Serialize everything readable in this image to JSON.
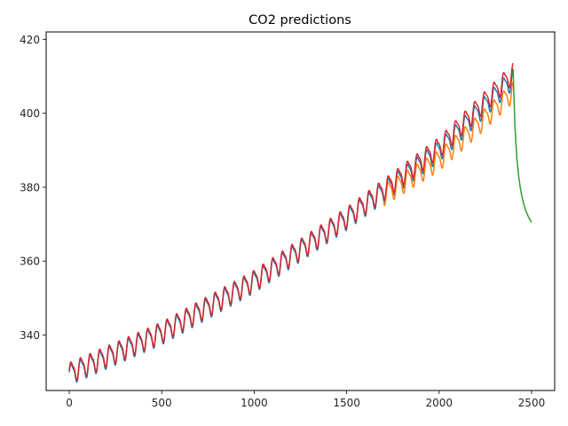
{
  "chart_data": {
    "type": "line",
    "title": "CO2 predictions",
    "xlabel": "",
    "ylabel": "",
    "xlim": [
      -125,
      2625
    ],
    "ylim": [
      325,
      422
    ],
    "grid": false,
    "legend": "none",
    "x_ticks": [
      0,
      500,
      1000,
      1500,
      2000,
      2500
    ],
    "y_ticks": [
      340,
      360,
      380,
      400,
      420
    ],
    "series": [
      {
        "color": "#1f77b4",
        "x_start": 0,
        "x_end": 2400,
        "trend": [
          [
            0,
            329.5
          ],
          [
            500,
            340.5
          ],
          [
            1000,
            354.5
          ],
          [
            1500,
            371.5
          ],
          [
            2000,
            390.0
          ],
          [
            2400,
            409.5
          ]
        ],
        "seasonal_amplitude": 3.0,
        "period": 52,
        "phase": 0.0
      },
      {
        "color": "#ff7f0e",
        "x_start": 1700,
        "x_end": 2400,
        "trend": [
          [
            1700,
            378.0
          ],
          [
            2000,
            387.5
          ],
          [
            2200,
            396.5
          ],
          [
            2400,
            406.0
          ]
        ],
        "seasonal_amplitude": 3.0,
        "period": 52,
        "phase": 0.0
      },
      {
        "color": "#2ca02c",
        "x": [
          2400,
          2405,
          2410,
          2420,
          2430,
          2440,
          2450,
          2460,
          2470,
          2480,
          2490,
          2500
        ],
        "y": [
          412.0,
          404.0,
          396.5,
          388.0,
          383.0,
          379.5,
          377.0,
          375.0,
          373.5,
          372.3,
          371.3,
          370.5
        ]
      },
      {
        "color": "#d62728",
        "x_start": 0,
        "x_end": 2400,
        "trend": [
          [
            0,
            330.0
          ],
          [
            500,
            341.0
          ],
          [
            1000,
            355.0
          ],
          [
            1500,
            372.0
          ],
          [
            2000,
            391.0
          ],
          [
            2400,
            411.0
          ]
        ],
        "seasonal_amplitude": 3.0,
        "period": 52,
        "phase": 0.0
      }
    ]
  }
}
